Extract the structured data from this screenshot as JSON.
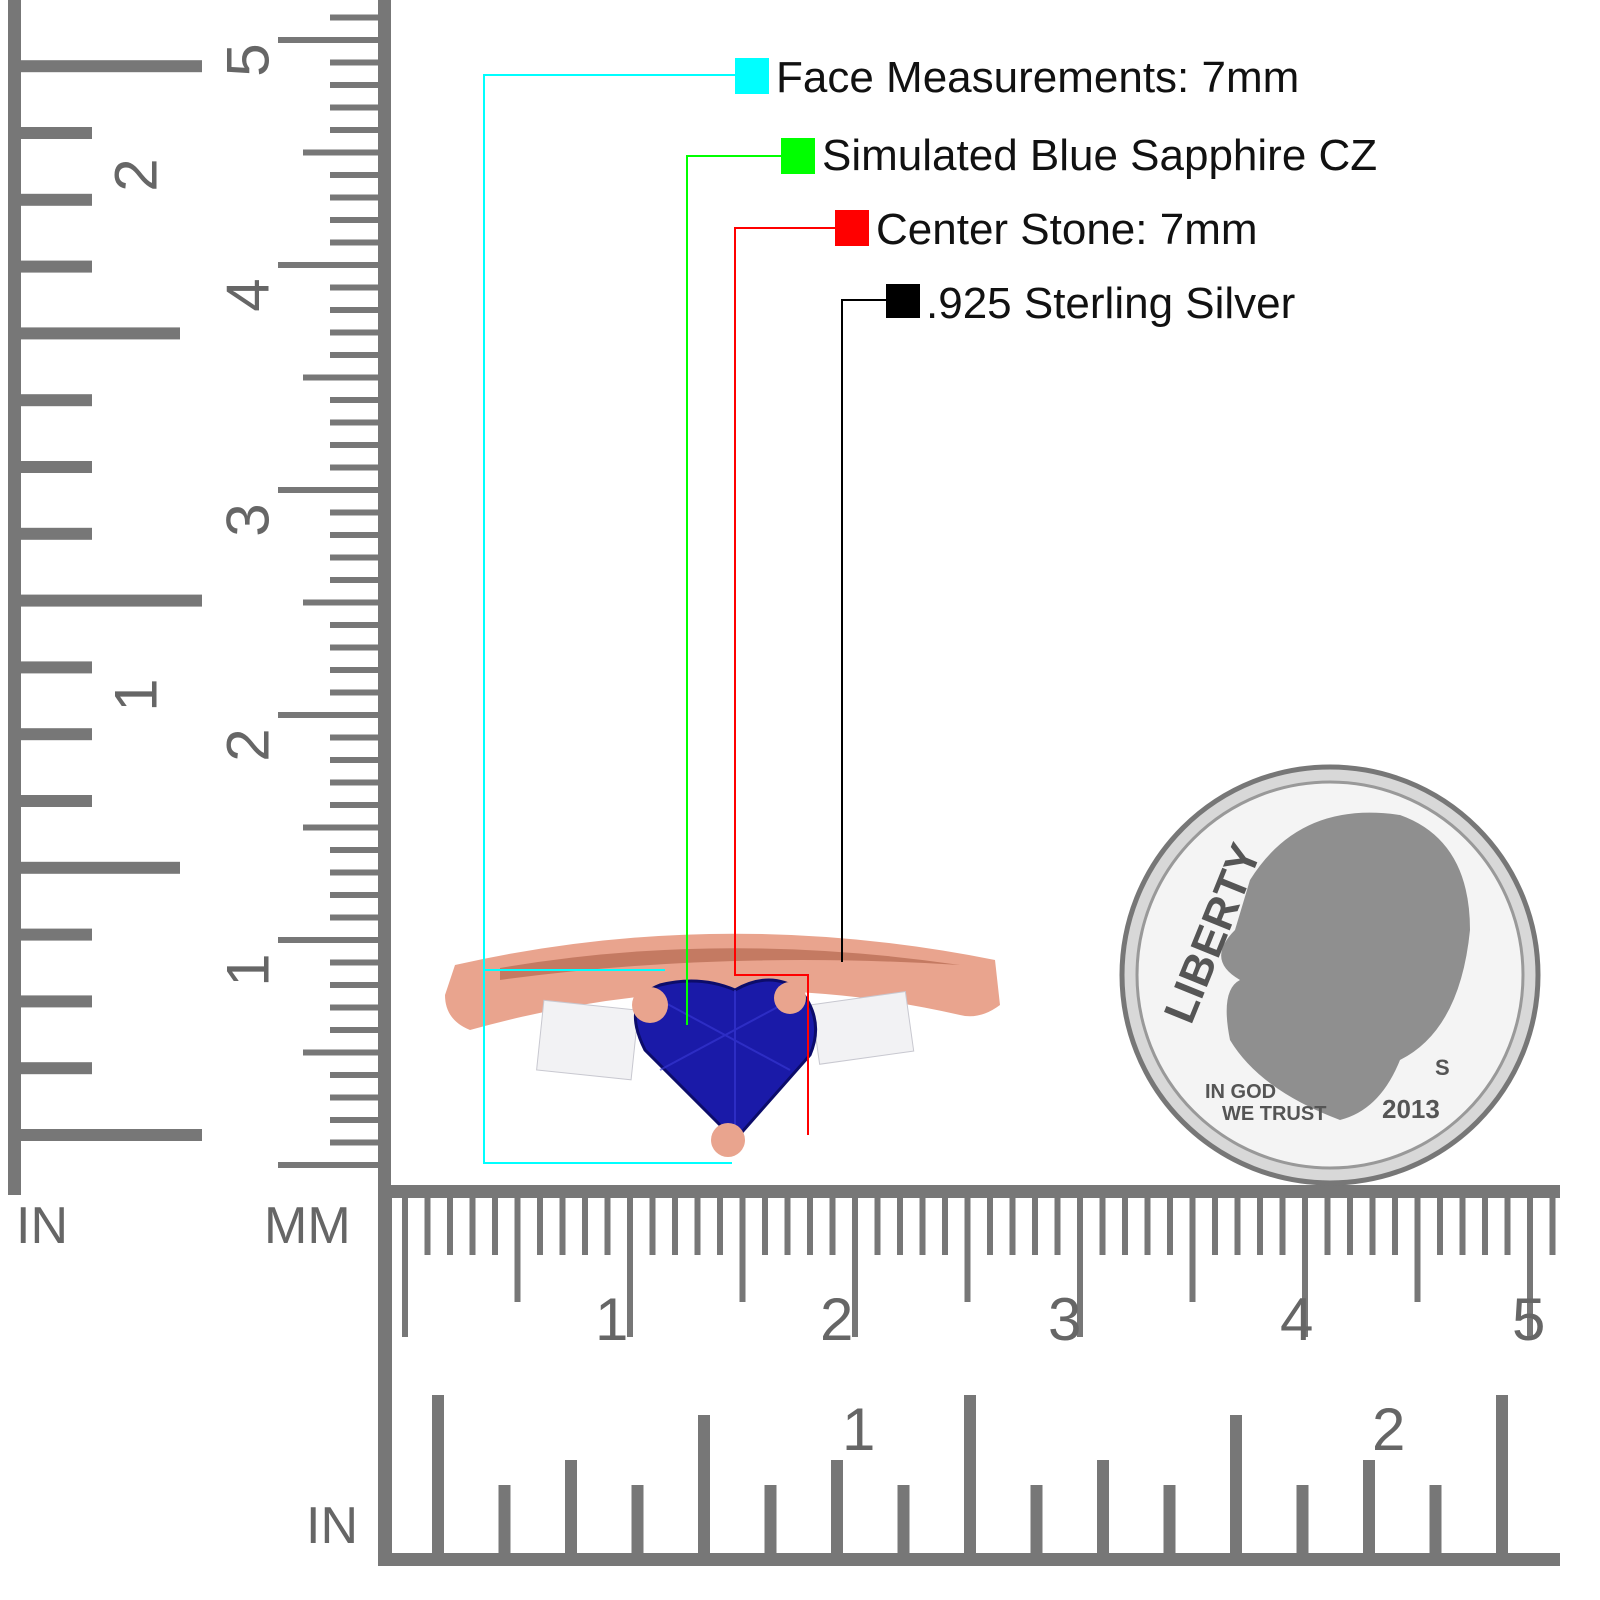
{
  "legend": [
    {
      "label": "Face Measurements: 7mm",
      "color": "#00ffff"
    },
    {
      "label": "Simulated Blue Sapphire CZ",
      "color": "#00ff00"
    },
    {
      "label": "Center Stone: 7mm",
      "color": "#ff0000"
    },
    {
      "label": ".925 Sterling Silver",
      "color": "#000000"
    }
  ],
  "rulers": {
    "left_in_label": "IN",
    "left_mm_label": "MM",
    "bottom_in_label": "IN",
    "vertical_in_numbers": [
      "1",
      "2"
    ],
    "vertical_cm_numbers": [
      "1",
      "2",
      "3",
      "4",
      "5"
    ],
    "horizontal_cm_numbers": [
      "1",
      "2",
      "3",
      "4",
      "5"
    ],
    "horizontal_in_numbers": [
      "1",
      "2"
    ],
    "tick_color": "#777777"
  },
  "coin": {
    "motto_top": "LIBERTY",
    "motto_left_1": "IN GOD",
    "motto_left_2": "WE TRUST",
    "mint_mark": "S",
    "year": "2013"
  },
  "ring": {
    "metal_color": "#e8a48c",
    "stone_color": "#1a1aa8"
  }
}
